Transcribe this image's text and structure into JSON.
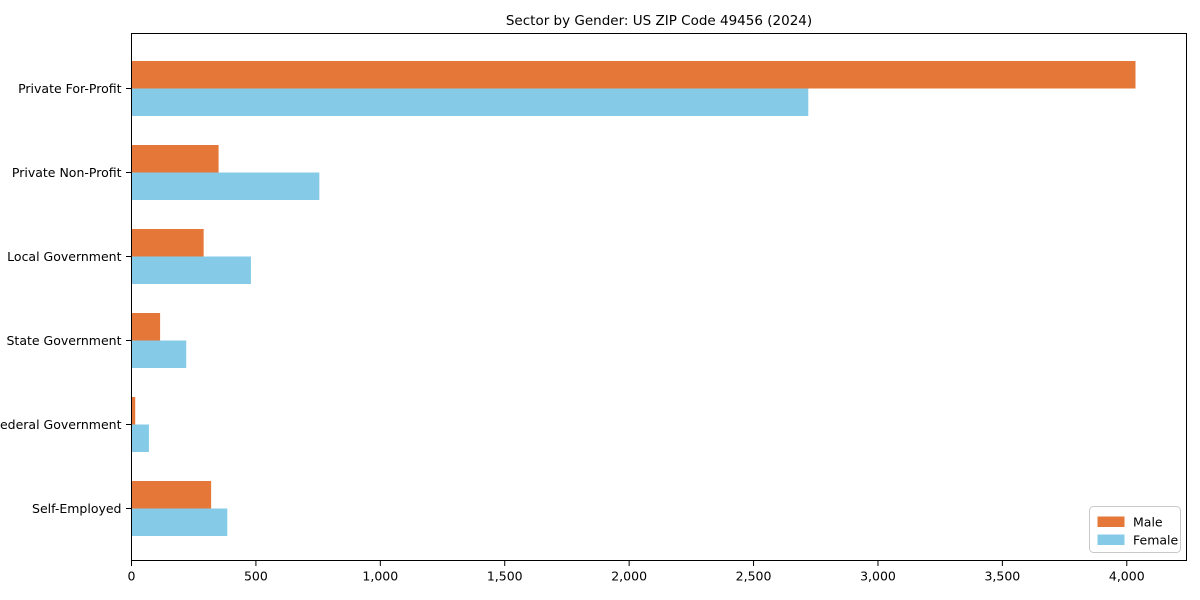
{
  "title": "Sector by Gender: US ZIP Code 49456 (2024)",
  "chart_data": {
    "type": "bar",
    "orientation": "horizontal",
    "title": "Sector by Gender: US ZIP Code 49456 (2024)",
    "xlabel": "",
    "ylabel": "",
    "categories": [
      "Private For-Profit",
      "Private Non-Profit",
      "Local Government",
      "State Government",
      "Federal Government",
      "Self-Employed"
    ],
    "series": [
      {
        "name": "Male",
        "color": "#E57839",
        "values": [
          4035,
          350,
          290,
          115,
          15,
          320
        ]
      },
      {
        "name": "Female",
        "color": "#85CBE8",
        "values": [
          2720,
          755,
          480,
          220,
          70,
          385
        ]
      }
    ],
    "xlim": [
      0,
      4240
    ],
    "xticks": [
      0,
      500,
      1000,
      1500,
      2000,
      2500,
      3000,
      3500,
      4000
    ],
    "xtick_labels": [
      "0",
      "500",
      "1,000",
      "1,500",
      "2,000",
      "2,500",
      "3,000",
      "3,500",
      "4,000"
    ],
    "grid": false,
    "legend_position": "lower right"
  },
  "colors": {
    "background": "#ffffff",
    "axis": "#000000",
    "legend_border": "#c9c9c9",
    "legend_background": "#ffffff"
  }
}
